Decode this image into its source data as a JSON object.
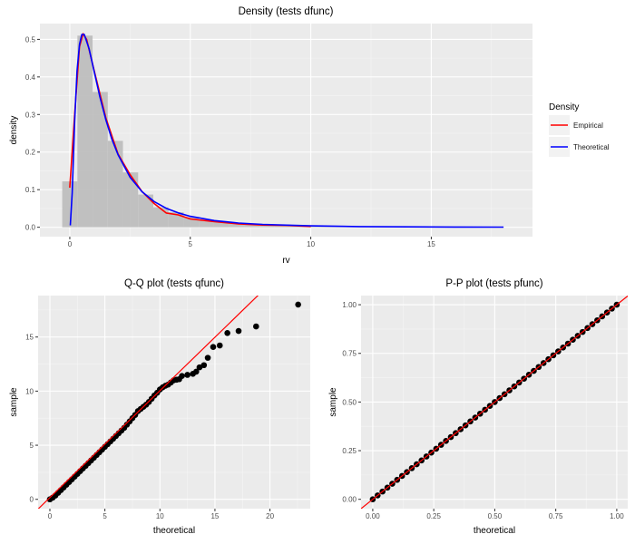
{
  "chart_data": [
    {
      "type": "bar",
      "title": "Density (tests dfunc)",
      "xlabel": "rv",
      "ylabel": "density",
      "xlim": [
        -1.24,
        19.2
      ],
      "ylim": [
        -0.025,
        0.542
      ],
      "grid": true,
      "xticks": [
        0,
        5,
        10,
        15
      ],
      "xtick_labels": [
        "0",
        "5",
        "10",
        "15"
      ],
      "yticks": [
        0,
        0.1,
        0.2,
        0.3,
        0.4,
        0.5
      ],
      "ytick_labels": [
        "0.0",
        "0.1",
        "0.2",
        "0.3",
        "0.4",
        "0.5"
      ],
      "histogram": {
        "bin_width": 0.63,
        "bin_centers_start": 0,
        "values": [
          0.122,
          0.51,
          0.36,
          0.23,
          0.146,
          0.087,
          0.053,
          0.04,
          0.027,
          0.02,
          0.014,
          0.011,
          0.008,
          0.006,
          0.005,
          0.004,
          0.003,
          0.002,
          0.002,
          0.0015,
          0.001,
          0.001,
          0.0008,
          0.0005,
          0.0005,
          0.0003,
          0.0003,
          0.0002,
          0.0002
        ],
        "color": "#BEBEBE"
      },
      "legend": {
        "title": "Density",
        "placement": "right"
      },
      "series": [
        {
          "name": "Empirical",
          "color": "#FF0000",
          "x": [
            0,
            0.2,
            0.4,
            0.55,
            0.7,
            1,
            1.5,
            2,
            2.5,
            3,
            3.5,
            4,
            4.5,
            5,
            6,
            7,
            8,
            9,
            10
          ],
          "y": [
            0.105,
            0.3,
            0.48,
            0.515,
            0.5,
            0.42,
            0.29,
            0.195,
            0.14,
            0.095,
            0.063,
            0.038,
            0.033,
            0.022,
            0.015,
            0.009,
            0.006,
            0.005,
            0.002
          ]
        },
        {
          "name": "Theoretical",
          "color": "#0000FF",
          "x": [
            0.02,
            0.1,
            0.2,
            0.3,
            0.4,
            0.5,
            0.6,
            0.8,
            1,
            1.25,
            1.5,
            1.75,
            2,
            2.5,
            3,
            3.5,
            4,
            4.5,
            5,
            6,
            7,
            8,
            10,
            12,
            14,
            16,
            18
          ],
          "y": [
            0.005,
            0.092,
            0.281,
            0.415,
            0.486,
            0.513,
            0.513,
            0.475,
            0.418,
            0.347,
            0.285,
            0.234,
            0.193,
            0.133,
            0.0945,
            0.0684,
            0.0505,
            0.0381,
            0.029,
            0.0177,
            0.0113,
            0.0075,
            0.0036,
            0.0019,
            0.001,
            0.0006,
            0.0004
          ]
        }
      ]
    },
    {
      "type": "scatter",
      "title": "Q-Q plot (tests qfunc)",
      "xlabel": "theoretical",
      "ylabel": "sample",
      "xlim": [
        -1.07,
        23.66
      ],
      "ylim": [
        -0.86,
        18.83
      ],
      "grid": true,
      "xticks": [
        0,
        5,
        10,
        15,
        20
      ],
      "xtick_labels": [
        "0",
        "5",
        "10",
        "15",
        "20"
      ],
      "yticks": [
        0,
        5,
        10,
        15
      ],
      "ytick_labels": [
        "0",
        "5",
        "10",
        "15"
      ],
      "points_color": "#000000",
      "reference_line": {
        "slope": 0.988,
        "intercept": 0.16,
        "color": "#FF0000"
      },
      "points": {
        "theoretical": [
          0,
          0.25,
          0.5,
          0.75,
          1,
          1.25,
          1.5,
          1.75,
          2,
          2.25,
          2.5,
          2.75,
          3,
          3.25,
          3.5,
          3.75,
          4,
          4.25,
          4.5,
          4.75,
          5,
          5.25,
          5.5,
          5.75,
          6,
          6.25,
          6.5,
          6.75,
          7,
          7.25,
          7.5,
          7.75,
          8,
          8.25,
          8.5,
          8.75,
          9,
          9.25,
          9.5,
          9.75,
          10,
          10.25,
          10.5,
          10.75,
          11,
          11.25,
          11.5,
          11.75,
          12,
          12.5,
          13,
          13.3,
          13.6,
          14.0,
          14.35,
          14.84,
          15.44,
          16.13,
          17.15,
          18.74,
          22.56
        ],
        "sample": [
          0.0,
          0.15,
          0.35,
          0.6,
          0.85,
          1.1,
          1.35,
          1.6,
          1.85,
          2.1,
          2.35,
          2.6,
          2.85,
          3.1,
          3.35,
          3.6,
          3.85,
          4.1,
          4.35,
          4.6,
          4.85,
          5.1,
          5.35,
          5.6,
          5.85,
          6.1,
          6.35,
          6.6,
          6.9,
          7.2,
          7.5,
          7.8,
          8.15,
          8.35,
          8.55,
          8.75,
          9.0,
          9.3,
          9.6,
          9.85,
          10.15,
          10.35,
          10.5,
          10.6,
          10.8,
          11.0,
          11.05,
          11.1,
          11.4,
          11.5,
          11.6,
          11.8,
          12.2,
          12.4,
          13.08,
          14.08,
          14.22,
          15.37,
          15.56,
          15.98,
          18.0
        ]
      }
    },
    {
      "type": "scatter",
      "title": "P-P plot (tests pfunc)",
      "xlabel": "theoretical",
      "ylabel": "sample",
      "xlim": [
        -0.048,
        1.045
      ],
      "ylim": [
        -0.048,
        1.047
      ],
      "grid": true,
      "xticks": [
        0,
        0.25,
        0.5,
        0.75,
        1
      ],
      "xtick_labels": [
        "0.00",
        "0.25",
        "0.50",
        "0.75",
        "1.00"
      ],
      "yticks": [
        0,
        0.25,
        0.5,
        0.75,
        1
      ],
      "ytick_labels": [
        "0.00",
        "0.25",
        "0.50",
        "0.75",
        "1.00"
      ],
      "points_color": "#000000",
      "reference_line": {
        "slope": 1,
        "intercept": 0,
        "color": "#FF0000"
      },
      "points": {
        "theoretical": [
          0,
          0.02,
          0.04,
          0.06,
          0.08,
          0.1,
          0.12,
          0.14,
          0.16,
          0.18,
          0.2,
          0.22,
          0.24,
          0.26,
          0.28,
          0.3,
          0.32,
          0.34,
          0.36,
          0.38,
          0.4,
          0.42,
          0.44,
          0.46,
          0.48,
          0.5,
          0.52,
          0.54,
          0.56,
          0.58,
          0.6,
          0.62,
          0.64,
          0.66,
          0.68,
          0.7,
          0.72,
          0.74,
          0.76,
          0.78,
          0.8,
          0.82,
          0.84,
          0.86,
          0.88,
          0.9,
          0.92,
          0.94,
          0.96,
          0.98,
          1
        ],
        "sample": [
          0,
          0.02,
          0.04,
          0.06,
          0.08,
          0.1,
          0.12,
          0.14,
          0.16,
          0.18,
          0.2,
          0.22,
          0.24,
          0.26,
          0.28,
          0.3,
          0.32,
          0.34,
          0.36,
          0.38,
          0.4,
          0.42,
          0.44,
          0.46,
          0.48,
          0.5,
          0.52,
          0.54,
          0.56,
          0.58,
          0.6,
          0.62,
          0.64,
          0.66,
          0.68,
          0.7,
          0.72,
          0.74,
          0.76,
          0.78,
          0.8,
          0.82,
          0.84,
          0.86,
          0.88,
          0.9,
          0.92,
          0.94,
          0.96,
          0.98,
          1
        ]
      }
    }
  ]
}
